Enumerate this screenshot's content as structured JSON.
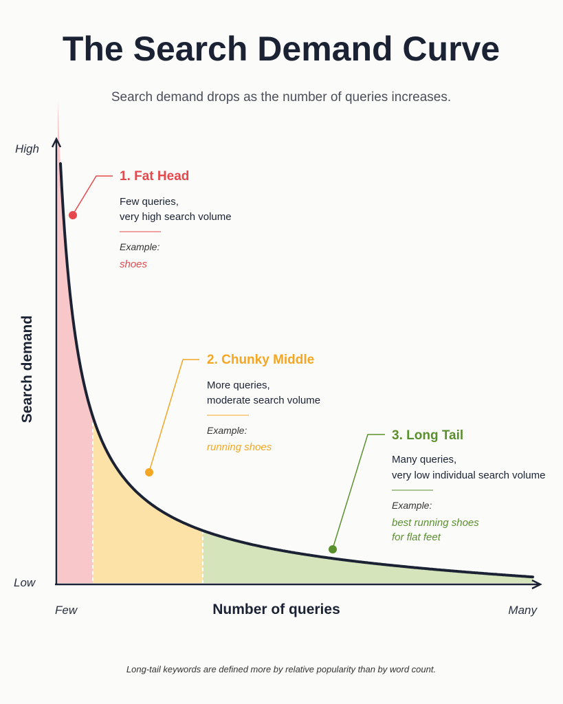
{
  "header": {
    "title": "The Search Demand Curve",
    "subtitle": "Search demand drops as the number of queries increases."
  },
  "axes": {
    "y_label": "Search demand",
    "y_high": "High",
    "y_low": "Low",
    "x_label": "Number of queries",
    "x_few": "Few",
    "x_many": "Many"
  },
  "sections": [
    {
      "title": "1. Fat Head",
      "description": [
        "Few queries,",
        "very high search volume"
      ],
      "example_label": "Example:",
      "example": [
        "shoes"
      ]
    },
    {
      "title": "2. Chunky Middle",
      "description": [
        "More queries,",
        "moderate search volume"
      ],
      "example_label": "Example:",
      "example": [
        "running shoes"
      ]
    },
    {
      "title": "3. Long Tail",
      "description": [
        "Many queries,",
        "very low individual search volume"
      ],
      "example_label": "Example:",
      "example": [
        "best running shoes",
        "for flat feet"
      ]
    }
  ],
  "footnote": "Long-tail keywords are defined more by relative popularity than by word count."
}
